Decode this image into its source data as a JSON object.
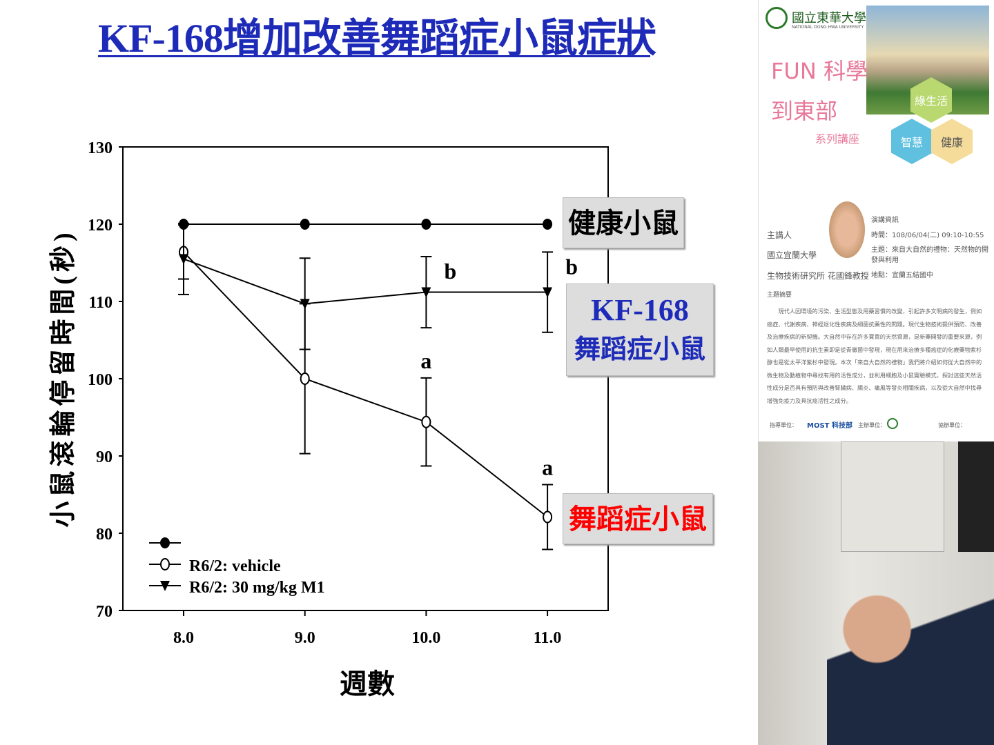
{
  "slide": {
    "title": "KF-168增加改善舞蹈症小鼠症狀",
    "labels": {
      "healthy": "健康小鼠",
      "kf168_line1": "KF-168",
      "kf168_line2": "舞蹈症小鼠",
      "disease": "舞蹈症小鼠"
    }
  },
  "chart_data": {
    "type": "line",
    "title": "",
    "xlabel": "週數",
    "ylabel": "小鼠滾輪停留時間(秒)",
    "xlim": [
      7.5,
      11.5
    ],
    "ylim": [
      70,
      130
    ],
    "x_ticks": [
      "8.0",
      "9.0",
      "10.0",
      "11.0"
    ],
    "y_ticks": [
      "70",
      "80",
      "90",
      "100",
      "110",
      "120",
      "130"
    ],
    "x": [
      8,
      9,
      10,
      11
    ],
    "legend_position": "bottom-left",
    "series": [
      {
        "name": "",
        "marker": "filled-circle",
        "values": [
          120,
          120,
          120,
          120
        ],
        "errors": [
          0,
          0,
          0,
          0
        ]
      },
      {
        "name": "R6/2: vehicle",
        "marker": "open-circle",
        "values": [
          116.4,
          100,
          94.4,
          82.1
        ],
        "errors": [
          3.5,
          9.7,
          5.7,
          4.2
        ]
      },
      {
        "name": "R6/2: 30 mg/kg M1",
        "marker": "filled-triangle-down",
        "values": [
          115.5,
          109.7,
          111.2,
          111.2
        ],
        "errors": [
          4.6,
          5.9,
          4.6,
          5.2
        ]
      }
    ],
    "annotations": [
      {
        "text": "b",
        "x": 10,
        "series": "R6/2: 30 mg/kg M1"
      },
      {
        "text": "b",
        "x": 11,
        "series": "R6/2: 30 mg/kg M1"
      },
      {
        "text": "a",
        "x": 10,
        "series": "R6/2: vehicle"
      },
      {
        "text": "a",
        "x": 11,
        "series": "R6/2: vehicle"
      }
    ],
    "colors": {
      "line": "#000000",
      "label_blue": "#1d2bb8",
      "label_red": "#ff0000"
    }
  },
  "panel": {
    "university": "國立東華大學",
    "university_en": "NATIONAL DONG HWA UNIVERSITY",
    "series_title1": "FUN 科學",
    "series_title2": "到東部",
    "series_sub": "系列講座",
    "hex": [
      "綠生活",
      "智慧",
      "健康"
    ],
    "speaker_label": "主講人",
    "speaker_org": "國立宜蘭大學",
    "speaker_dept": "生物技術研究所  花國鋒教授",
    "info_title": "演講資訊",
    "time": "時間：108/06/04(二) 09:10-10:55",
    "topic": "主題：來自大自然的禮物：天然物的開發與利用",
    "place": "地點：宜蘭五結國中",
    "abstract_title": "主題摘要",
    "abstract": "現代人因環境的污染、生活型態及用藥習慣的改變，引起許多文明病的發生，例如癌症、代謝疾病、神經退化性疾病及細菌抗藥性的問題。現代生物技術提供預防、改善及治療疾病的新契機。大自然中存在許多寶貴的天然資源，是新藥開發的重要來源，例如人類最早使用的抗生素即是從青黴菌中發現，現在用來治療多種癌症的化療藥物紫杉醇也是從太平洋紫杉中發現。本次「來自大自然的禮物」我們將介紹如何從大自然中的微生物及動植物中尋找有用的活性成分，並利用細胞及小鼠實驗模式，探討這些天然活性成分是否具有預防與改善腎臟病、腸炎、痛風等發炎相關疾病，以及從大自然中找尋增強免疫力及具抗癌活性之成分。",
    "guide_label": "指導單位：",
    "most": "MOST 科技部",
    "host_label": "主辦單位：",
    "co_label": "協辦單位："
  }
}
